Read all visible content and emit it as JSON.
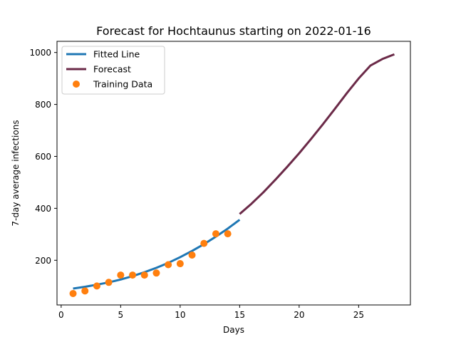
{
  "chart_data": {
    "type": "line",
    "title": "Forecast for Hochtaunus starting on 2022-01-16",
    "xlabel": "Days",
    "ylabel": "7-day average infections",
    "xlim": [
      -0.35,
      29.35
    ],
    "ylim": [
      28,
      1043
    ],
    "xticks": [
      0,
      5,
      10,
      15,
      20,
      25
    ],
    "yticks": [
      200,
      400,
      600,
      800,
      1000
    ],
    "grid": false,
    "legend_position": "top-left",
    "series": [
      {
        "name": "Fitted Line",
        "kind": "line",
        "color": "#1f77b4",
        "x": [
          1,
          2,
          3,
          4,
          5,
          6,
          7,
          8,
          9,
          10,
          11,
          12,
          13,
          14,
          15
        ],
        "y": [
          91,
          98,
          106,
          115,
          126,
          139,
          154,
          171,
          190,
          212,
          236,
          262,
          291,
          322,
          356
        ]
      },
      {
        "name": "Forecast",
        "kind": "line",
        "color": "#6b2a48",
        "x": [
          15,
          16,
          17,
          18,
          19,
          20,
          21,
          22,
          23,
          24,
          25,
          26,
          27,
          28
        ],
        "y": [
          378,
          418,
          462,
          510,
          560,
          612,
          667,
          724,
          783,
          843,
          900,
          950,
          975,
          993
        ]
      },
      {
        "name": "Training Data",
        "kind": "scatter",
        "color": "#ff7f0e",
        "x": [
          1,
          2,
          3,
          4,
          5,
          6,
          7,
          8,
          9,
          10,
          11,
          12,
          13,
          14
        ],
        "y": [
          72,
          82,
          101,
          115,
          143,
          143,
          143,
          151,
          183,
          187,
          220,
          265,
          302,
          302
        ]
      }
    ]
  }
}
